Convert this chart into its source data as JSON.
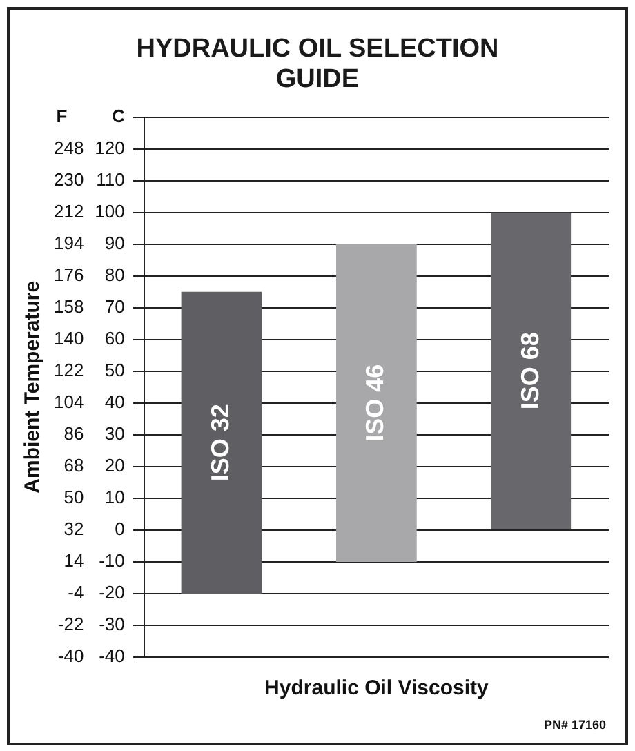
{
  "chart_data": {
    "type": "bar",
    "title": "HYDRAULIC OIL SELECTION GUIDE",
    "xlabel": "Hydraulic Oil Viscosity",
    "y2label": "Ambient Temperature",
    "annotations": [
      "F",
      "C",
      "PN# 17160"
    ],
    "categories": [
      "ISO 32",
      "ISO 46",
      "ISO 68"
    ],
    "base": [
      -20,
      -10,
      0
    ],
    "values": [
      95,
      100,
      100
    ],
    "colors": [
      "#5f5f63",
      "#a8a8aa",
      "#68686c"
    ],
    "ylim": [
      -40,
      130
    ],
    "yticks": [
      -40,
      -30,
      -20,
      -10,
      0,
      10,
      20,
      30,
      40,
      50,
      60,
      70,
      80,
      90,
      100,
      110,
      120,
      {
        "value": 130,
        "label": null
      }
    ],
    "y2lim": [
      -40,
      266
    ],
    "y2ticks": [
      -40,
      -22,
      -4,
      14,
      32,
      50,
      68,
      86,
      104,
      122,
      140,
      158,
      176,
      194,
      212,
      230,
      248
    ],
    "grid": "y",
    "legend": false,
    "tick_labels": "y"
  }
}
